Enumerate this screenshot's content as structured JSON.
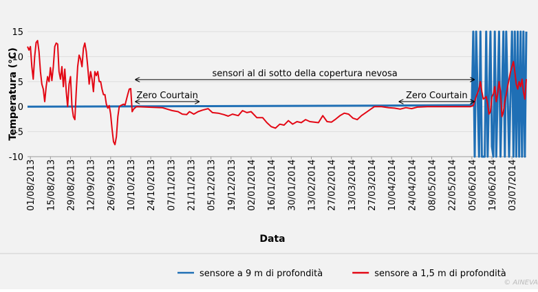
{
  "chart_data": {
    "type": "line",
    "xlabel": "Data",
    "ylabel": "Temperatura (°C)",
    "xlim": [
      "30/07/2013",
      "13/07/2014"
    ],
    "xticks": [
      "01/08/2013",
      "15/08/2013",
      "29/08/2013",
      "12/09/2013",
      "26/09/2013",
      "10/10/2013",
      "24/10/2013",
      "07/11/2013",
      "21/11/2013",
      "05/12/2013",
      "19/12/2013",
      "02/01/2014",
      "16/01/2014",
      "30/01/2014",
      "13/02/2014",
      "27/02/2014",
      "13/03/2014",
      "27/03/2014",
      "10/04/2014",
      "24/04/2014",
      "08/05/2014",
      "22/05/2014",
      "05/06/2014",
      "19/06/2014",
      "03/07/2014"
    ],
    "ylim": [
      -10,
      15
    ],
    "yticks": [
      -10,
      -5,
      0,
      5,
      10,
      15
    ],
    "grid": true,
    "legend": "bottom",
    "annotations": [
      {
        "text": "sensori al di sotto della copertura nevosa",
        "x": [
          "13/10/2013",
          "07/06/2014"
        ],
        "y": 5.4
      },
      {
        "text": "Zero Courtain",
        "x": [
          "13/10/2013",
          "27/11/2013"
        ],
        "y": 1
      },
      {
        "text": "Zero Courtain",
        "x": [
          "15/04/2014",
          "07/06/2014"
        ],
        "y": 1
      }
    ],
    "credit": "© AINEVA",
    "series": [
      {
        "name": "sensore a 9 m di profondità",
        "color": "#1f6fb5",
        "x": [
          "30/07/2013",
          "01/08/2013",
          "01/12/2013",
          "01/04/2014",
          "04/06/2014",
          "05/06/2014",
          "06/06/2014",
          "07/06/2014",
          "08/06/2014",
          "10/06/2014",
          "11/06/2014",
          "12/06/2014",
          "14/06/2014",
          "15/06/2014",
          "16/06/2014",
          "18/06/2014",
          "19/06/2014",
          "20/06/2014",
          "21/06/2014",
          "22/06/2014",
          "24/06/2014",
          "25/06/2014",
          "27/06/2014",
          "28/06/2014",
          "29/06/2014",
          "01/07/2014",
          "03/07/2014",
          "04/07/2014",
          "05/07/2014",
          "06/07/2014",
          "07/07/2014",
          "08/07/2014",
          "09/07/2014",
          "10/07/2014",
          "11/07/2014",
          "12/07/2014",
          "13/07/2014"
        ],
        "values": [
          0,
          0,
          0.1,
          0.2,
          0.3,
          0.3,
          15,
          -10,
          15,
          -10,
          15,
          -10,
          -10,
          15,
          -10,
          15,
          -8,
          -10,
          15,
          -10,
          15,
          -10,
          15,
          -10,
          15,
          -10,
          15,
          -10,
          15,
          -10,
          15,
          -10,
          15,
          -10,
          15,
          -10,
          15
        ]
      },
      {
        "name": "sensore a 1,5 m di profondità",
        "color": "#e30613",
        "x": [
          "30/07/2013",
          "31/07/2013",
          "01/08/2013",
          "02/08/2013",
          "03/08/2013",
          "04/08/2013",
          "05/08/2013",
          "06/08/2013",
          "07/08/2013",
          "08/08/2013",
          "09/08/2013",
          "10/08/2013",
          "11/08/2013",
          "12/08/2013",
          "13/08/2013",
          "14/08/2013",
          "15/08/2013",
          "16/08/2013",
          "17/08/2013",
          "18/08/2013",
          "19/08/2013",
          "20/08/2013",
          "21/08/2013",
          "22/08/2013",
          "23/08/2013",
          "24/08/2013",
          "25/08/2013",
          "26/08/2013",
          "27/08/2013",
          "28/08/2013",
          "29/08/2013",
          "30/08/2013",
          "31/08/2013",
          "01/09/2013",
          "02/09/2013",
          "03/09/2013",
          "04/09/2013",
          "05/09/2013",
          "06/09/2013",
          "07/09/2013",
          "08/09/2013",
          "09/09/2013",
          "10/09/2013",
          "11/09/2013",
          "12/09/2013",
          "13/09/2013",
          "14/09/2013",
          "15/09/2013",
          "16/09/2013",
          "17/09/2013",
          "18/09/2013",
          "19/09/2013",
          "20/09/2013",
          "21/09/2013",
          "22/09/2013",
          "23/09/2013",
          "24/09/2013",
          "25/09/2013",
          "26/09/2013",
          "27/09/2013",
          "28/09/2013",
          "29/09/2013",
          "30/09/2013",
          "01/10/2013",
          "02/10/2013",
          "03/10/2013",
          "05/10/2013",
          "06/10/2013",
          "08/10/2013",
          "09/10/2013",
          "10/10/2013",
          "11/10/2013",
          "12/10/2013",
          "14/10/2013",
          "01/11/2013",
          "08/11/2013",
          "12/11/2013",
          "15/11/2013",
          "18/11/2013",
          "20/11/2013",
          "23/11/2013",
          "26/11/2013",
          "29/11/2013",
          "03/12/2013",
          "06/12/2013",
          "10/12/2013",
          "14/12/2013",
          "17/12/2013",
          "20/12/2013",
          "24/12/2013",
          "27/12/2013",
          "30/12/2013",
          "02/01/2014",
          "06/01/2014",
          "10/01/2014",
          "13/01/2014",
          "16/01/2014",
          "19/01/2014",
          "22/01/2014",
          "25/01/2014",
          "28/01/2014",
          "31/01/2014",
          "03/02/2014",
          "06/02/2014",
          "09/02/2014",
          "12/02/2014",
          "15/02/2014",
          "18/02/2014",
          "21/02/2014",
          "24/02/2014",
          "27/02/2014",
          "02/03/2014",
          "05/03/2014",
          "08/03/2014",
          "11/03/2014",
          "14/03/2014",
          "17/03/2014",
          "20/03/2014",
          "23/03/2014",
          "26/03/2014",
          "29/03/2014",
          "03/04/2014",
          "08/04/2014",
          "12/04/2014",
          "16/04/2014",
          "20/04/2014",
          "24/04/2014",
          "28/04/2014",
          "05/05/2014",
          "15/05/2014",
          "25/05/2014",
          "04/06/2014",
          "06/06/2014",
          "08/06/2014",
          "10/06/2014",
          "11/06/2014",
          "12/06/2014",
          "13/06/2014",
          "15/06/2014",
          "16/06/2014",
          "17/06/2014",
          "18/06/2014",
          "19/06/2014",
          "20/06/2014",
          "21/06/2014",
          "22/06/2014",
          "23/06/2014",
          "24/06/2014",
          "25/06/2014",
          "26/06/2014",
          "27/06/2014",
          "28/06/2014",
          "30/06/2014",
          "01/07/2014",
          "02/07/2014",
          "04/07/2014",
          "05/07/2014",
          "06/07/2014",
          "07/07/2014",
          "08/07/2014",
          "09/07/2014",
          "10/07/2014",
          "11/07/2014",
          "12/07/2014",
          "13/07/2014"
        ],
        "values": [
          12,
          11.3,
          12,
          8,
          5.5,
          10,
          12.8,
          13.2,
          11,
          7,
          4.5,
          3.5,
          1,
          4,
          6,
          5,
          7.8,
          5.2,
          8,
          12,
          12.7,
          12.5,
          7,
          5.5,
          8,
          4,
          7.5,
          3,
          0,
          4.5,
          6,
          0,
          -2,
          -2.6,
          3,
          8,
          10.3,
          9.5,
          8,
          11.7,
          12.7,
          11,
          8,
          4.5,
          7,
          5.5,
          3,
          7,
          6.2,
          7,
          5,
          5,
          3.5,
          2.4,
          2.4,
          0.5,
          -0.3,
          0.2,
          -1.5,
          -4.5,
          -7,
          -7.6,
          -6,
          -2,
          0,
          0.2,
          0.5,
          0.3,
          2.5,
          3.5,
          3.6,
          -1,
          -0.5,
          0,
          -0.2,
          -0.8,
          -1,
          -1.5,
          -1.6,
          -1,
          -1.5,
          -1,
          -0.7,
          -0.4,
          -1.2,
          -1.3,
          -1.6,
          -1.9,
          -1.5,
          -1.8,
          -0.8,
          -1.2,
          -1,
          -2.2,
          -2.2,
          -3.2,
          -4,
          -4.3,
          -3.5,
          -3.7,
          -2.8,
          -3.5,
          -3,
          -3.2,
          -2.6,
          -3,
          -3.1,
          -3.2,
          -1.8,
          -3,
          -3.1,
          -2.5,
          -1.8,
          -1.3,
          -1.5,
          -2.3,
          -2.6,
          -1.8,
          -1.2,
          -0.6,
          0,
          0,
          -0.2,
          -0.3,
          -0.5,
          -0.2,
          -0.4,
          -0.1,
          0,
          0,
          0,
          0,
          0.2,
          2,
          3.5,
          5,
          3,
          1.5,
          2,
          0.5,
          -1.5,
          -1,
          2,
          2.5,
          4,
          1,
          2.5,
          5,
          3,
          -2,
          -1,
          1,
          4,
          5.5,
          7,
          9,
          7,
          4.5,
          3.5,
          5,
          4,
          5.5,
          3,
          1.5,
          5.5
        ]
      }
    ]
  }
}
